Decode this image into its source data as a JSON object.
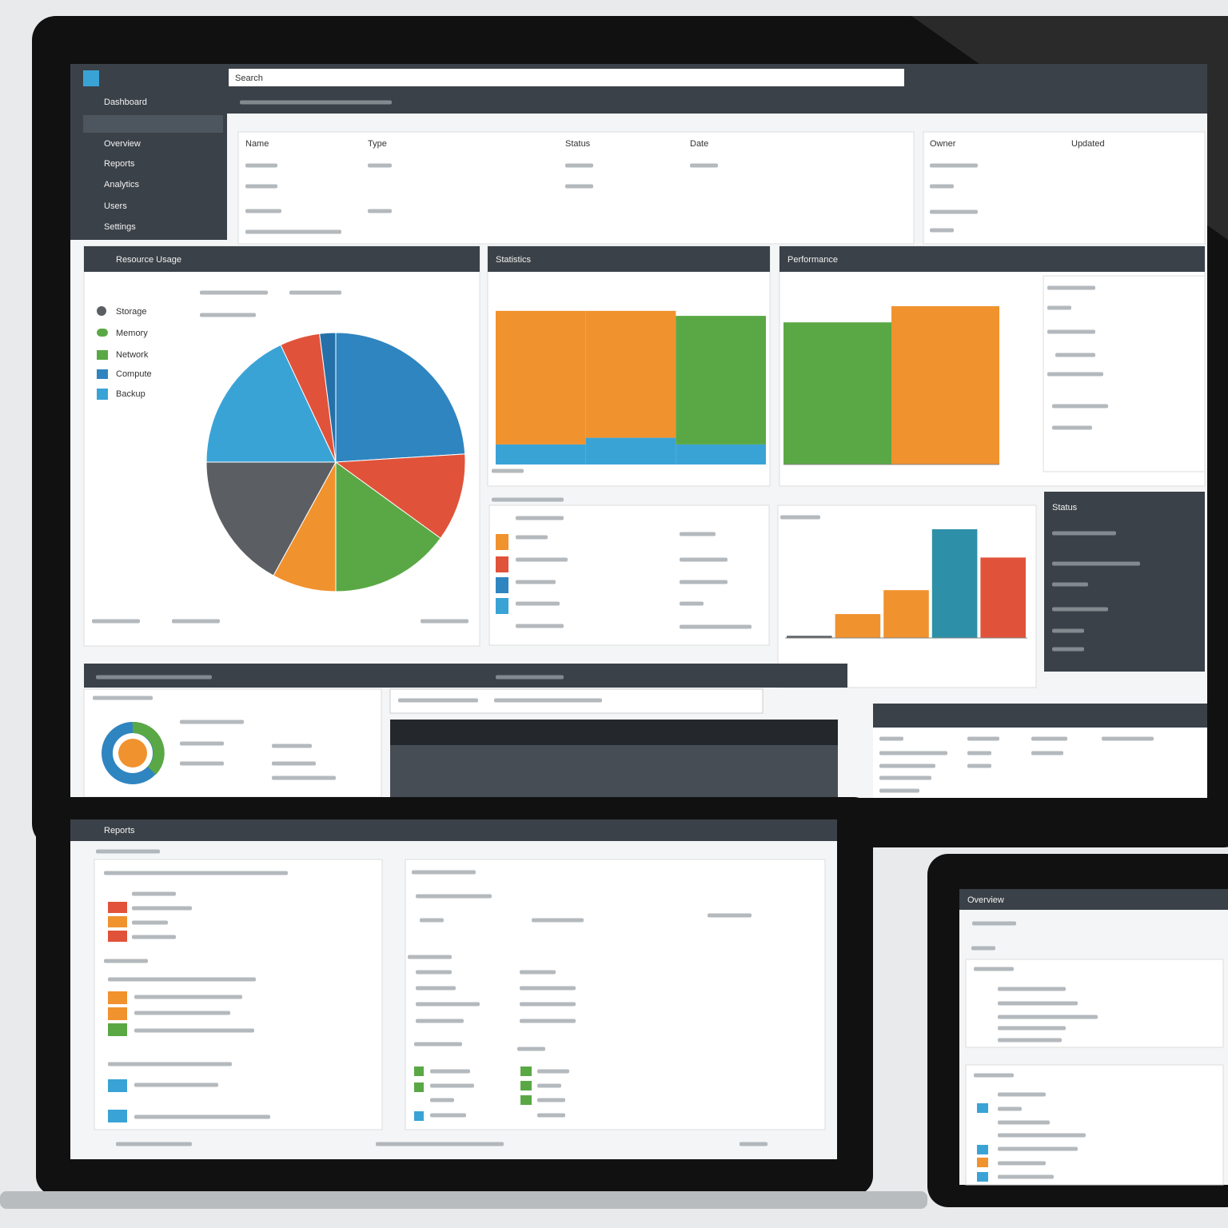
{
  "screen": {
    "title": "Dashboard",
    "search": "Search",
    "nav": [
      "Overview",
      "Reports",
      "Analytics",
      "Users",
      "Settings"
    ],
    "table_headers": [
      "Name",
      "Type",
      "Status",
      "Date"
    ],
    "side_headers": [
      "Owner",
      "Updated"
    ]
  },
  "panels": {
    "pie_title": "Resource Usage",
    "legend": [
      "Storage",
      "Memory",
      "Network",
      "Compute",
      "Backup"
    ],
    "bar_title": "Statistics",
    "perf_title": "Performance",
    "status_title": "Status"
  },
  "laptop": {
    "title": "Reports"
  },
  "tablet": {
    "title": "Overview"
  },
  "charts": {
    "pie": {
      "type": "pie",
      "values": [
        24,
        11,
        15,
        8,
        17,
        18,
        5,
        2
      ],
      "colors": [
        "#2f85c0",
        "#e0533a",
        "#5aa845",
        "#f0922e",
        "#5b5f63",
        "#3aa3d6",
        "#e0533a",
        "#2570a8"
      ]
    },
    "bars1": {
      "type": "bar",
      "categories": [
        null,
        null,
        null
      ],
      "series": [
        {
          "color": "#3aa3d6",
          "values": [
            12,
            16,
            12
          ]
        },
        {
          "color": "#f0922e",
          "values": [
            80,
            76,
            null
          ]
        },
        {
          "color": "#5aa845",
          "values": [
            null,
            null,
            77
          ]
        }
      ]
    },
    "bars2": {
      "type": "bar",
      "categories": [
        null,
        null
      ],
      "values": [
        88,
        98
      ],
      "colors": [
        "#5aa845",
        "#f0922e"
      ]
    },
    "bars3": {
      "type": "bar",
      "categories": [
        null,
        null,
        null,
        null,
        null
      ],
      "values": [
        2,
        22,
        44,
        100,
        74
      ],
      "colors": [
        "#5b5f63",
        "#f0922e",
        "#f0922e",
        "#2e8fa8",
        "#e0533a"
      ]
    }
  }
}
